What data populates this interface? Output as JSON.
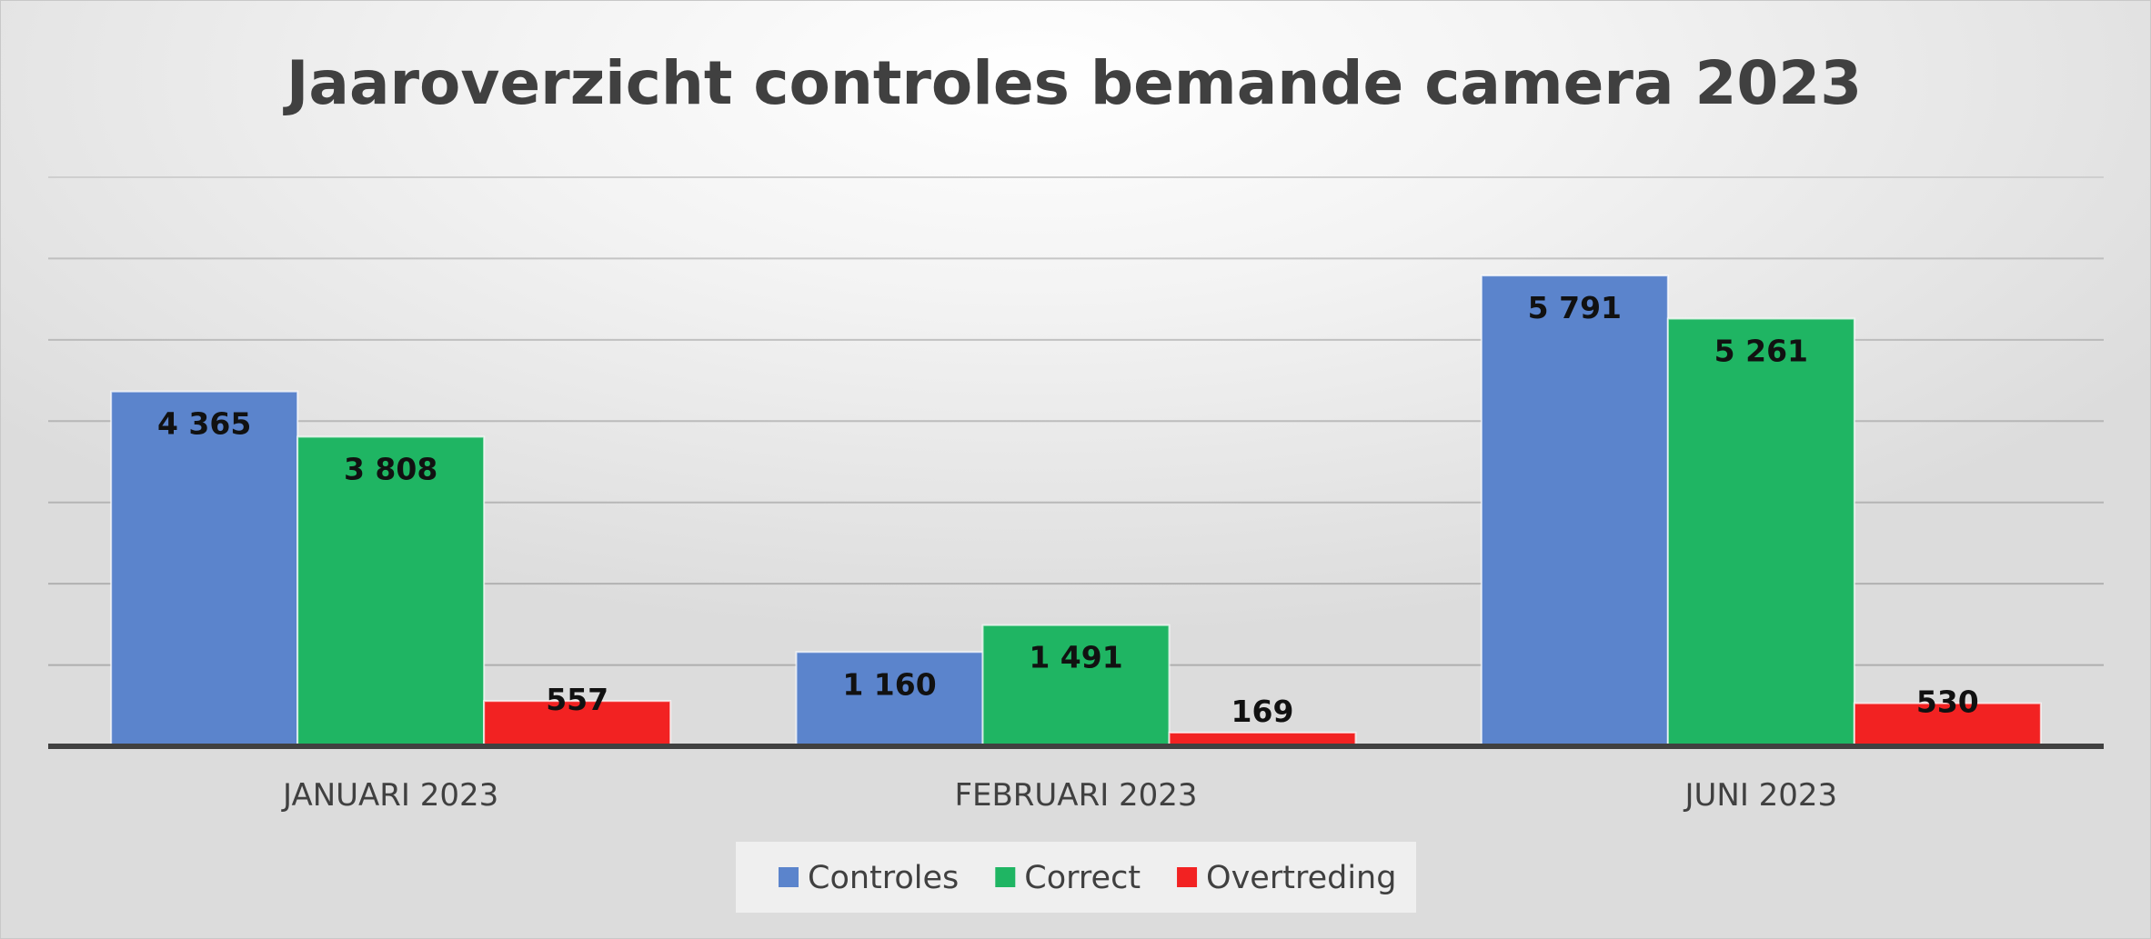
{
  "chart_data": {
    "type": "bar",
    "title": "Jaaroverzicht controles bemande camera 2023",
    "categories": [
      "JANUARI 2023",
      "FEBRUARI 2023",
      "JUNI 2023"
    ],
    "series": [
      {
        "name": "Controles",
        "values": [
          4365,
          1160,
          5791
        ],
        "labels": [
          "4 365",
          "1 160",
          "5 791"
        ],
        "color": "#5b84cc"
      },
      {
        "name": "Correct",
        "values": [
          3808,
          1491,
          5261
        ],
        "labels": [
          "3 808",
          "1 491",
          "5 261"
        ],
        "color": "#1fb563"
      },
      {
        "name": "Overtreding",
        "values": [
          557,
          169,
          530
        ],
        "labels": [
          "557",
          "169",
          "530"
        ],
        "color": "#f22222"
      }
    ],
    "ylim": [
      0,
      7000
    ],
    "y_grid_step": 1000,
    "grid": true,
    "y_tick_labels_shown": false,
    "legend_position": "bottom",
    "data_labels": "inside-top"
  }
}
